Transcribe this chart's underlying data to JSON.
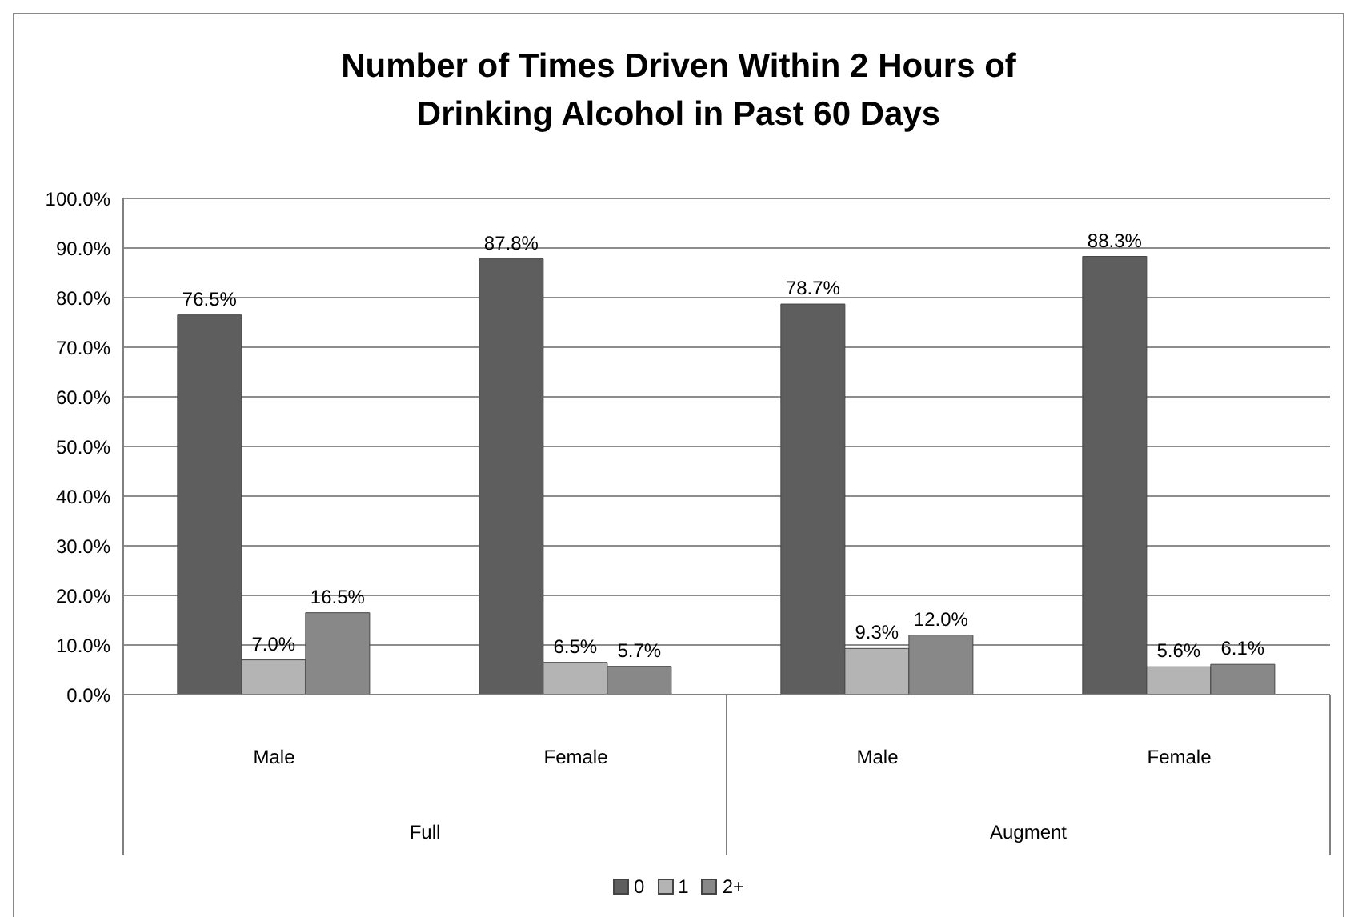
{
  "chart_data": {
    "type": "bar",
    "title": "Number of Times Driven Within 2 Hours of Drinking Alcohol in Past 60 Days",
    "categories": [
      "Male",
      "Female",
      "Male",
      "Female"
    ],
    "annotations": [
      "Full",
      "Augment"
    ],
    "series": [
      {
        "name": "0",
        "color": "#5e5e5e",
        "values": [
          76.5,
          87.8,
          78.7,
          88.3
        ],
        "value_labels": [
          "76.5%",
          "87.8%",
          "78.7%",
          "88.3%"
        ]
      },
      {
        "name": "1",
        "color": "#b4b4b4",
        "values": [
          7.0,
          6.5,
          9.3,
          5.6
        ],
        "value_labels": [
          "7.0%",
          "6.5%",
          "9.3%",
          "5.6%"
        ]
      },
      {
        "name": "2+",
        "color": "#888888",
        "values": [
          16.5,
          5.7,
          12.0,
          6.1
        ],
        "value_labels": [
          "16.5%",
          "5.7%",
          "12.0%",
          "6.1%"
        ]
      }
    ],
    "ylim": [
      0,
      100
    ],
    "yticks": [
      {
        "value": 0,
        "label": "0.0%"
      },
      {
        "value": 10,
        "label": "10.0%"
      },
      {
        "value": 20,
        "label": "20.0%"
      },
      {
        "value": 30,
        "label": "30.0%"
      },
      {
        "value": 40,
        "label": "40.0%"
      },
      {
        "value": 50,
        "label": "50.0%"
      },
      {
        "value": 60,
        "label": "60.0%"
      },
      {
        "value": 70,
        "label": "70.0%"
      },
      {
        "value": 80,
        "label": "80.0%"
      },
      {
        "value": 90,
        "label": "90.0%"
      },
      {
        "value": 100,
        "label": "100.0%"
      }
    ],
    "grid": "y",
    "legend": "bottom"
  }
}
